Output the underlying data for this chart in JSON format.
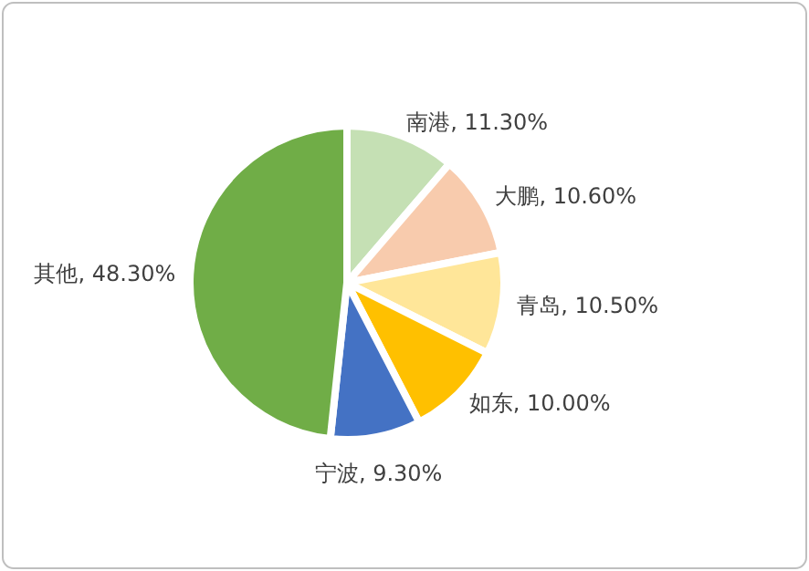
{
  "chart_data": {
    "type": "pie",
    "categories": [
      "南港",
      "大鹏",
      "青岛",
      "如东",
      "宁波",
      "其他"
    ],
    "values": [
      11.3,
      10.6,
      10.5,
      10.0,
      9.3,
      48.3
    ],
    "value_labels": [
      "11.30%",
      "10.60%",
      "10.50%",
      "10.00%",
      "9.30%",
      "48.30%"
    ],
    "colors": [
      "#c5e0b4",
      "#f8cbad",
      "#ffe699",
      "#ffc000",
      "#4472c4",
      "#70ad47"
    ],
    "legend": false
  }
}
